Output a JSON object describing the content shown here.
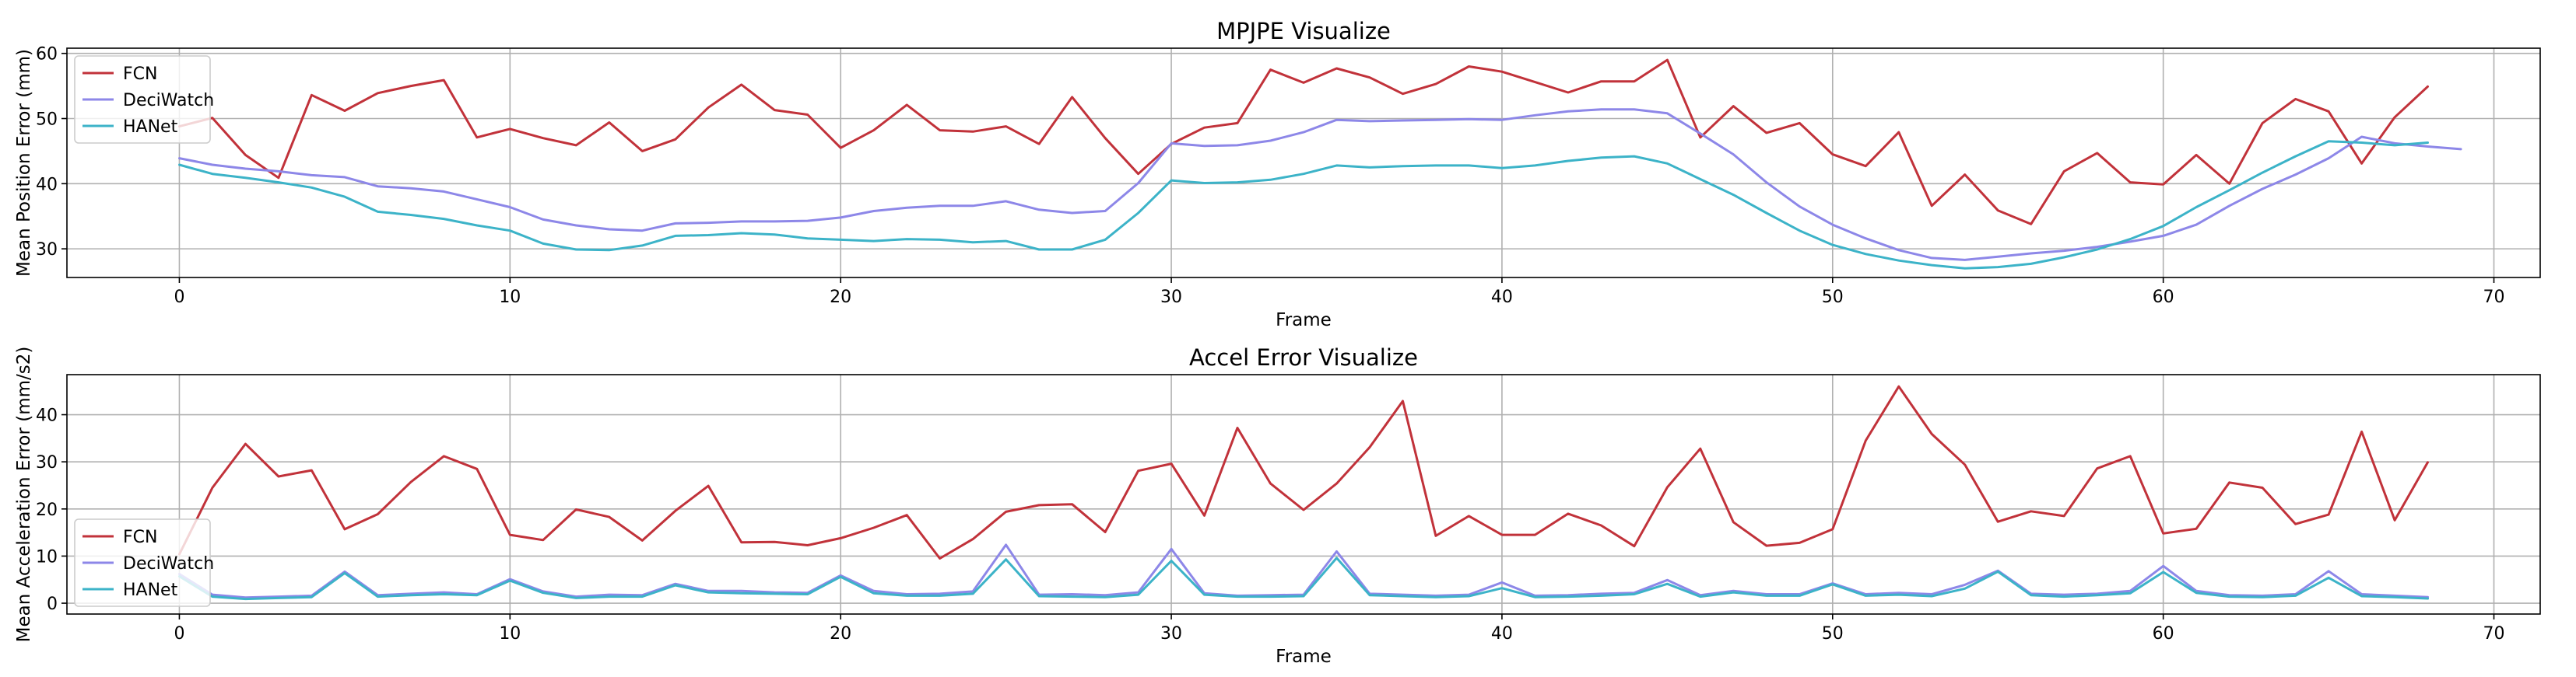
{
  "chart_data": [
    {
      "type": "line",
      "title": "MPJPE Visualize",
      "xlabel": "Frame",
      "ylabel": "Mean Position Error (mm)",
      "xlim": [
        -3.4,
        71.4
      ],
      "ylim": [
        25.6,
        60.8
      ],
      "xticks": [
        0,
        10,
        20,
        30,
        40,
        50,
        60,
        70
      ],
      "yticks": [
        30,
        40,
        50,
        60
      ],
      "grid": true,
      "legend_position": "lower left",
      "series": [
        {
          "name": "FCN",
          "color": "#c1323a",
          "values": [
            48.8,
            50.1,
            44.4,
            40.9,
            53.6,
            51.2,
            53.9,
            55.0,
            55.9,
            47.1,
            48.4,
            47.0,
            45.9,
            49.4,
            45.0,
            46.8,
            51.7,
            55.2,
            51.3,
            50.6,
            45.5,
            48.2,
            52.1,
            48.2,
            48.0,
            48.8,
            46.1,
            53.3,
            47.0,
            41.5,
            46.1,
            48.6,
            49.3,
            57.5,
            55.5,
            57.7,
            56.3,
            53.8,
            55.3,
            58.0,
            57.2,
            55.6,
            54.0,
            55.7,
            55.7,
            59.0,
            47.1,
            51.9,
            47.8,
            49.3,
            44.5,
            42.7,
            47.9,
            36.6,
            41.4,
            35.9,
            33.8,
            41.9,
            44.7,
            40.2,
            39.9,
            44.4,
            40.0,
            49.3,
            53.0,
            51.1,
            43.1,
            50.2,
            54.9
          ]
        },
        {
          "name": "DeciWatch",
          "color": "#8d87e8",
          "values": [
            43.9,
            42.9,
            42.3,
            41.9,
            41.3,
            41.0,
            39.6,
            39.3,
            38.8,
            37.6,
            36.4,
            34.5,
            33.6,
            33.0,
            32.8,
            33.9,
            34.0,
            34.2,
            34.2,
            34.3,
            34.8,
            35.8,
            36.3,
            36.6,
            36.6,
            37.3,
            36.0,
            35.5,
            35.8,
            40.1,
            46.2,
            45.8,
            45.9,
            46.6,
            47.9,
            49.8,
            49.6,
            49.7,
            49.8,
            49.9,
            49.8,
            50.5,
            51.1,
            51.4,
            51.4,
            50.8,
            47.7,
            44.5,
            40.2,
            36.5,
            33.7,
            31.6,
            29.8,
            28.6,
            28.3,
            28.8,
            29.3,
            29.7,
            30.3,
            31.1,
            32.0,
            33.7,
            36.6,
            39.2,
            41.4,
            43.9,
            47.2,
            46.2,
            45.7,
            45.3
          ]
        },
        {
          "name": "HANet",
          "color": "#3cb3c8",
          "values": [
            42.9,
            41.5,
            40.9,
            40.2,
            39.4,
            38.0,
            35.7,
            35.2,
            34.6,
            33.6,
            32.8,
            30.8,
            29.9,
            29.8,
            30.5,
            32.0,
            32.1,
            32.4,
            32.2,
            31.6,
            31.4,
            31.2,
            31.5,
            31.4,
            31.0,
            31.2,
            29.9,
            29.9,
            31.4,
            35.5,
            40.5,
            40.1,
            40.2,
            40.6,
            41.5,
            42.8,
            42.5,
            42.7,
            42.8,
            42.8,
            42.4,
            42.8,
            43.5,
            44.0,
            44.2,
            43.1,
            40.7,
            38.3,
            35.5,
            32.8,
            30.6,
            29.2,
            28.2,
            27.5,
            27.0,
            27.2,
            27.7,
            28.7,
            29.9,
            31.5,
            33.5,
            36.4,
            39.0,
            41.7,
            44.2,
            46.5,
            46.3,
            45.9,
            46.3
          ]
        }
      ]
    },
    {
      "type": "line",
      "title": "Accel Error Visualize",
      "xlabel": "Frame",
      "ylabel": "Mean Acceleration Error (mm/s2)",
      "xlim": [
        -3.4,
        71.4
      ],
      "ylim": [
        -2.3,
        48.5
      ],
      "xticks": [
        0,
        10,
        20,
        30,
        40,
        50,
        60,
        70
      ],
      "yticks": [
        0,
        10,
        20,
        30,
        40
      ],
      "grid": true,
      "legend_position": "upper left",
      "series": [
        {
          "name": "FCN",
          "color": "#c1323a",
          "values": [
            10.4,
            24.5,
            33.8,
            26.9,
            28.2,
            15.7,
            18.9,
            25.7,
            31.2,
            28.5,
            14.5,
            13.4,
            19.9,
            18.3,
            13.3,
            19.6,
            24.9,
            12.9,
            13.0,
            12.3,
            13.8,
            16.0,
            18.7,
            9.5,
            13.6,
            19.4,
            20.8,
            21.0,
            15.1,
            28.1,
            29.6,
            18.6,
            37.2,
            25.4,
            19.8,
            25.4,
            33.1,
            42.9,
            14.3,
            18.5,
            14.5,
            14.5,
            19.0,
            16.5,
            12.1,
            24.6,
            32.8,
            17.2,
            12.2,
            12.8,
            15.7,
            34.5,
            46.0,
            35.9,
            29.4,
            17.3,
            19.5,
            18.5,
            28.6,
            31.2,
            14.8,
            15.8,
            25.6,
            24.5,
            16.8,
            18.8,
            36.4,
            17.6,
            29.9
          ]
        },
        {
          "name": "DeciWatch",
          "color": "#8d87e8",
          "values": [
            6.2,
            1.8,
            1.2,
            1.4,
            1.6,
            6.7,
            1.7,
            2.0,
            2.3,
            1.9,
            5.1,
            2.5,
            1.4,
            1.8,
            1.7,
            4.1,
            2.6,
            2.6,
            2.3,
            2.2,
            5.9,
            2.6,
            1.9,
            2.0,
            2.5,
            12.4,
            1.8,
            1.9,
            1.7,
            2.3,
            11.5,
            2.1,
            1.6,
            1.7,
            1.8,
            11.0,
            2.0,
            1.8,
            1.6,
            1.8,
            4.4,
            1.6,
            1.7,
            2.0,
            2.2,
            4.9,
            1.7,
            2.6,
            1.9,
            1.9,
            4.2,
            1.9,
            2.2,
            1.9,
            3.9,
            6.9,
            2.0,
            1.8,
            2.0,
            2.6,
            7.9,
            2.6,
            1.7,
            1.6,
            1.9,
            6.8,
            1.9,
            1.6,
            1.3
          ]
        },
        {
          "name": "HANet",
          "color": "#3cb3c8",
          "values": [
            5.7,
            1.4,
            0.9,
            1.1,
            1.3,
            6.4,
            1.4,
            1.7,
            1.9,
            1.7,
            4.8,
            2.2,
            1.1,
            1.4,
            1.4,
            3.8,
            2.3,
            2.1,
            2.0,
            1.9,
            5.6,
            2.1,
            1.6,
            1.6,
            2.0,
            9.3,
            1.5,
            1.4,
            1.3,
            1.8,
            9.0,
            1.8,
            1.4,
            1.4,
            1.5,
            9.6,
            1.7,
            1.5,
            1.3,
            1.5,
            3.2,
            1.3,
            1.4,
            1.6,
            1.9,
            4.1,
            1.4,
            2.3,
            1.6,
            1.6,
            4.0,
            1.6,
            1.8,
            1.5,
            3.1,
            6.7,
            1.7,
            1.4,
            1.7,
            2.1,
            6.6,
            2.2,
            1.4,
            1.3,
            1.6,
            5.4,
            1.5,
            1.3,
            1.0
          ]
        }
      ]
    }
  ]
}
